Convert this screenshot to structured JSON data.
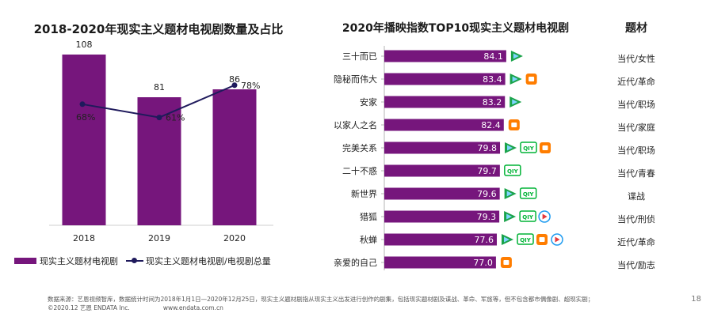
{
  "left_chart_title": "2018-2020年现实主义题材电视剧数量及占比",
  "right_chart_title": "2020年播映指数TOP10现实主义题材电视剧",
  "genre_column_header": "题材",
  "legend": {
    "bar_label": "现实主义题材电视剧",
    "line_label": "现实主义题材电视剧/电视剧总量"
  },
  "colors": {
    "bar": "#76167c",
    "line": "#1f1a5c",
    "tencent": "#1aa34a",
    "iqiyi": "#00b336",
    "mgtv": "#ff7d00",
    "youku": "#1e9bf0"
  },
  "chart_data": [
    {
      "type": "bar",
      "categories": [
        "2018",
        "2019",
        "2020"
      ],
      "series": [
        {
          "name": "现实主义题材电视剧",
          "values": [
            108,
            81,
            86
          ]
        },
        {
          "name": "现实主义题材电视剧/电视剧总量",
          "type": "line",
          "values": [
            68,
            61,
            78
          ],
          "unit": "%"
        }
      ],
      "value_labels": [
        "108",
        "81",
        "86"
      ],
      "pct_labels": [
        "68%",
        "61%",
        "78%"
      ],
      "ylim": [
        0,
        120
      ]
    },
    {
      "type": "bar",
      "orientation": "horizontal",
      "categories": [
        "三十而已",
        "隐秘而伟大",
        "安家",
        "以家人之名",
        "完美关系",
        "二十不惑",
        "新世界",
        "猎狐",
        "秋蝉",
        "亲爱的自己"
      ],
      "values": [
        84.1,
        83.4,
        83.2,
        82.4,
        79.8,
        79.7,
        79.6,
        79.3,
        77.6,
        77.0
      ],
      "value_labels": [
        "84.1",
        "83.4",
        "83.2",
        "82.4",
        "79.8",
        "79.7",
        "79.6",
        "79.3",
        "77.6",
        "77.0"
      ],
      "platforms": [
        [
          "tencent"
        ],
        [
          "tencent",
          "mgtv"
        ],
        [
          "tencent"
        ],
        [
          "mgtv"
        ],
        [
          "tencent",
          "iqiyi",
          "mgtv"
        ],
        [
          "iqiyi"
        ],
        [
          "tencent",
          "iqiyi"
        ],
        [
          "tencent",
          "iqiyi",
          "youku"
        ],
        [
          "tencent",
          "iqiyi",
          "mgtv",
          "youku"
        ],
        [
          "mgtv"
        ]
      ],
      "genres": [
        "当代/女性",
        "近代/革命",
        "当代/职场",
        "当代/家庭",
        "当代/职场",
        "当代/青春",
        "谍战",
        "当代/刑侦",
        "近代/革命",
        "当代/励志"
      ]
    }
  ],
  "source_line1": "数据来源：艺恩视频智库，数据统计时间为2018年1月1日—2020年12月25日，现实主义题材剧指从现实主义出发进行创作的剧集，包括现实题材剧及谍战、革命、军旅等，但不包含都市偶像剧、超现实剧；",
  "source_copyright": "©2020.12 艺恩 ENDATA Inc.",
  "source_url": "www.endata.com.cn",
  "page_number": "18"
}
